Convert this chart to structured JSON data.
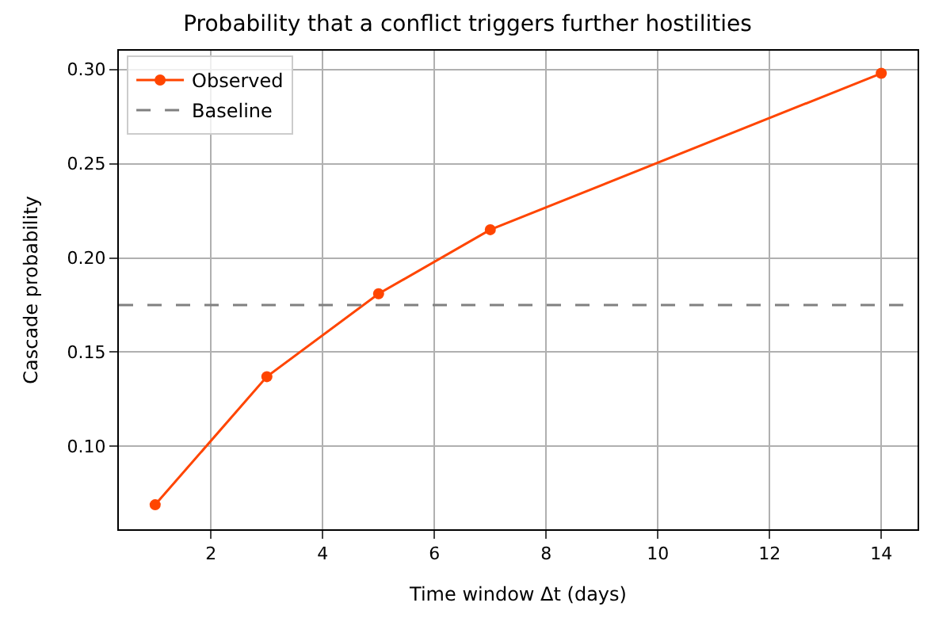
{
  "chart_data": {
    "type": "line",
    "title": "Probability that a conflict triggers further hostilities",
    "xlabel": "Time window Δt (days)",
    "ylabel": "Cascade probability",
    "x": [
      1,
      3,
      5,
      7,
      14
    ],
    "series": [
      {
        "name": "Observed",
        "color": "#ff4500",
        "values": [
          0.069,
          0.137,
          0.181,
          0.215,
          0.298
        ]
      }
    ],
    "ref_lines": [
      {
        "axis": "y",
        "value": 0.175,
        "label": "Baseline",
        "color": "#808080",
        "line_style": "dashed"
      }
    ],
    "xlim": [
      0.35,
      14.65
    ],
    "xticks": [
      2,
      4,
      6,
      8,
      10,
      12,
      14
    ],
    "ylim": [
      0.056,
      0.31
    ],
    "yticks": [
      {
        "value": 0.1,
        "label": "0.10"
      },
      {
        "value": 0.15,
        "label": "0.15"
      },
      {
        "value": 0.2,
        "label": "0.20"
      },
      {
        "value": 0.25,
        "label": "0.25"
      },
      {
        "value": 0.3,
        "label": "0.30"
      }
    ],
    "grid": true,
    "legend": "top left",
    "marker": "circle",
    "line_style": "solid"
  }
}
